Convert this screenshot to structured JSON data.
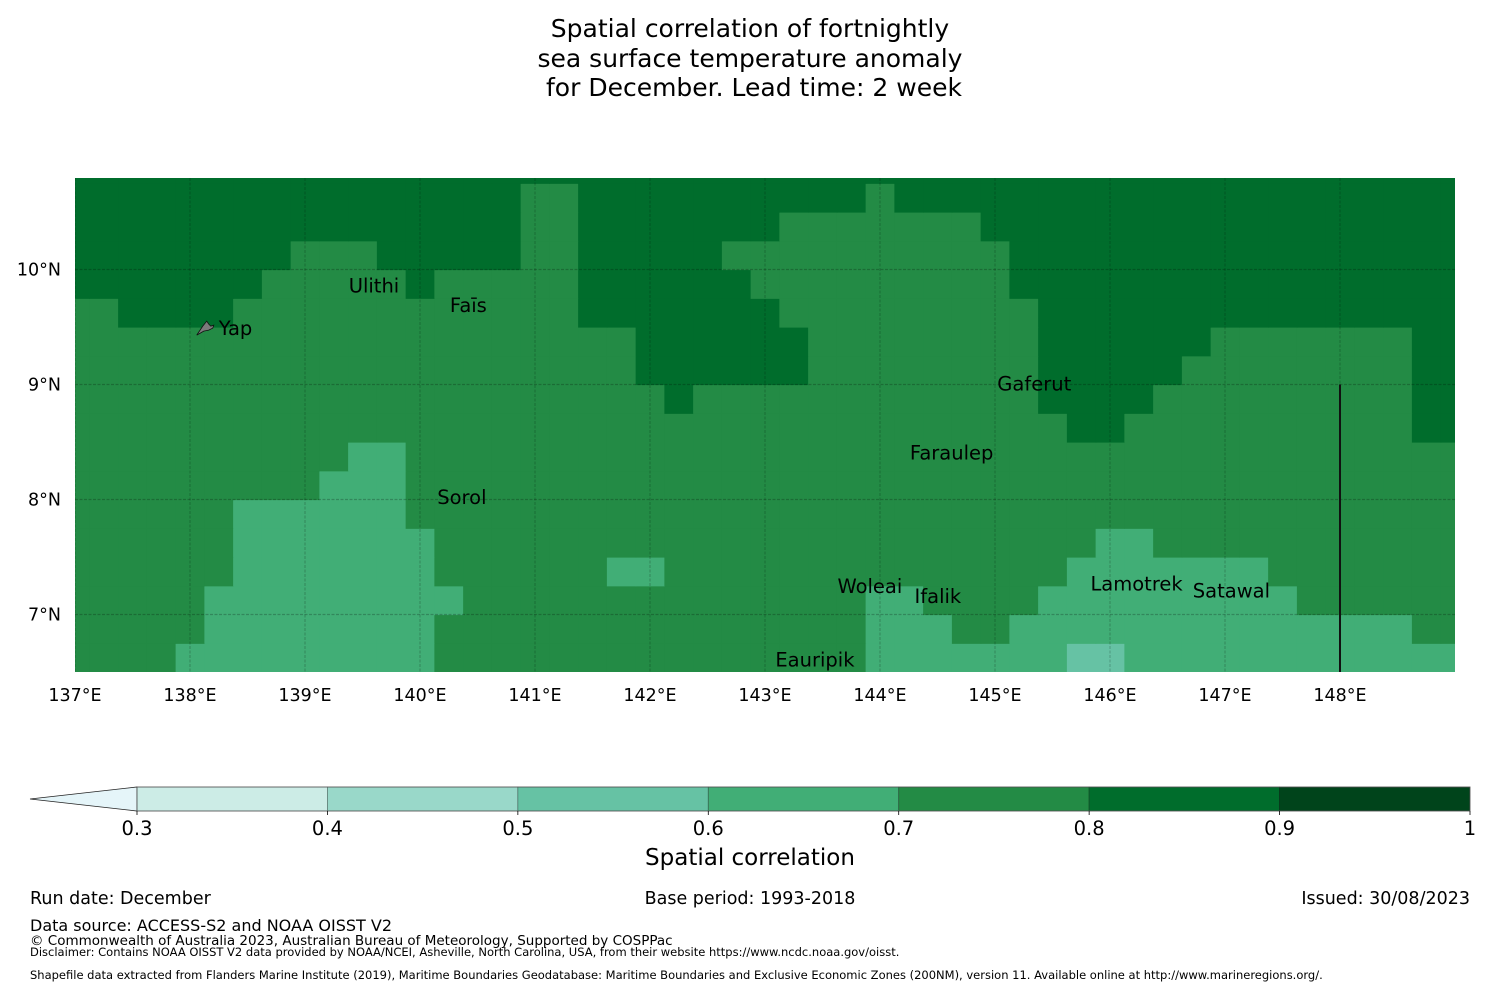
{
  "title_lines": [
    "Spatial correlation of fortnightly",
    "sea surface temperature anomaly",
    " for December. Lead time: 2 week"
  ],
  "chart_data": {
    "type": "heatmap",
    "title": "Spatial correlation of fortnightly sea surface temperature anomaly for December. Lead time: 2 week",
    "xlabel": "",
    "ylabel": "",
    "x_range": [
      137,
      149
    ],
    "y_range": [
      6.5,
      10.79
    ],
    "x_ticks": [
      137,
      138,
      139,
      140,
      141,
      142,
      143,
      144,
      145,
      146,
      147,
      148
    ],
    "x_tick_labels": [
      "137°E",
      "138°E",
      "139°E",
      "140°E",
      "141°E",
      "142°E",
      "143°E",
      "144°E",
      "145°E",
      "146°E",
      "147°E",
      "148°E"
    ],
    "y_ticks": [
      7,
      8,
      9,
      10
    ],
    "y_tick_labels": [
      "7°N",
      "8°N",
      "9°N",
      "10°N"
    ],
    "grid": true,
    "cell_size_deg": 0.25,
    "cell_lon_start": 137.0,
    "cell_lat_start": 6.625,
    "grid_rows_note": "rows listed from south (first) to north (last); each char = level index into levels[]",
    "levels": [
      {
        "index": 0,
        "range": "<0.3",
        "color": "#e5f5f9"
      },
      {
        "index": 1,
        "range": "0.3-0.4",
        "color": "#ccece6"
      },
      {
        "index": 2,
        "range": "0.5-0.6",
        "color": "#66c2a4"
      },
      {
        "index": 3,
        "range": "0.6-0.7",
        "color": "#41ae76"
      },
      {
        "index": 4,
        "range": "0.7-0.8",
        "color": "#238b45"
      },
      {
        "index": 5,
        "range": "0.8-0.9",
        "color": "#006d2c"
      }
    ],
    "grid_rows": [
      "4444333333333444444444444444333333322333333333333",
      "4444433333333444444444444444333443333333333333344",
      "4444433333333344444444444444334444333333333444444",
      "4444443333333444444334444444444444433333334444444",
      "4444443333333444444444444444444444443344444444444",
      "4444443333334444444444444444444444444444444444444",
      "4444444443334444444444444444444444444444444444444",
      "4444444444334444444444444444444444444444444444444",
      "4444444444444444444444444444444444455444444444455",
      "4444444444444444444445444444444444555544444444455",
      "4444444444444444444455555544444444555554444444455",
      "4444444444444444444455555544444444555555444444455",
      "4455554444444444445555555444444444555555555555555",
      "5555555444445444445555554444444445555555555555555",
      "5555555544455555445555544444444445555555555555555",
      "5555555555555555445555555444444455555555555555555",
      "5555555555555555445555555555455555555555555555555",
      "5555555555555555555555555555555555555555555555555"
    ],
    "islands": [
      {
        "name": "Ulithi",
        "lon": 139.38,
        "lat": 9.86
      },
      {
        "name": "Faīs",
        "lon": 140.26,
        "lat": 9.69
      },
      {
        "name": "Yap",
        "lon": 138.25,
        "lat": 9.49
      },
      {
        "name": "Gaferut",
        "lon": 145.02,
        "lat": 9.01
      },
      {
        "name": "Faraulep",
        "lon": 144.26,
        "lat": 8.41
      },
      {
        "name": "Sorol",
        "lon": 140.15,
        "lat": 8.02
      },
      {
        "name": "Woleai",
        "lon": 143.63,
        "lat": 7.25
      },
      {
        "name": "Ifalik",
        "lon": 144.3,
        "lat": 7.16
      },
      {
        "name": "Lamotrek",
        "lon": 145.83,
        "lat": 7.27
      },
      {
        "name": "Satawal",
        "lon": 146.72,
        "lat": 7.21
      },
      {
        "name": "Eauripik",
        "lon": 143.09,
        "lat": 6.61
      }
    ],
    "eez_boundary": {
      "lon": 148.0,
      "lat_from": 6.5,
      "lat_to": 9.0
    },
    "colorbar": {
      "label": "Spatial correlation",
      "extend": "min",
      "extension_color": "#e5f5f9",
      "bounds": [
        0.3,
        0.4,
        0.5,
        0.6,
        0.7,
        0.8,
        0.9,
        1.0
      ],
      "tick_labels": [
        "0.3",
        "0.4",
        "0.5",
        "0.6",
        "0.7",
        "0.8",
        "0.9",
        "1"
      ],
      "colors": [
        "#ccece6",
        "#99d8c9",
        "#66c2a4",
        "#41ae76",
        "#238b45",
        "#006d2c",
        "#00441b"
      ]
    }
  },
  "footer": {
    "run_date": "Run date: December",
    "base_period": "Base period: 1993-2018",
    "issued": "Issued: 30/08/2023",
    "data_source": "Data source: ACCESS-S2 and NOAA OISST V2",
    "copyright": "© Commonwealth of Australia 2023, Australian Bureau of Meteorology, Supported by COSPPac",
    "disclaimer": "Disclaimer: Contains NOAA OISST V2 data provided by NOAA/NCEI, Asheville, North Carolina, USA, from their website https://www.ncdc.noaa.gov/oisst.",
    "shapefile": "Shapefile data extracted from Flanders Marine Institute (2019), Maritime Boundaries Geodatabase: Maritime Boundaries and Exclusive Economic Zones (200NM), version 11. Available online at http://www.marineregions.org/."
  }
}
